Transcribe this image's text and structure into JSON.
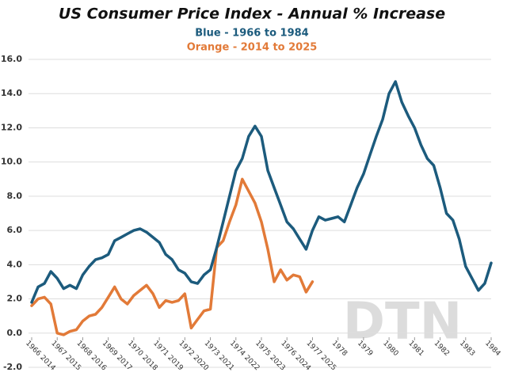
{
  "chart_data": {
    "type": "line",
    "title": "US Consumer Price Index - Annual % Increase",
    "subtitle": "Blue - 1966 to 1984",
    "subtitle2": "Orange - 2014 to 2025",
    "watermark": "DTN",
    "x": [
      1966,
      1966.25,
      1966.5,
      1966.75,
      1967,
      1967.25,
      1967.5,
      1967.75,
      1968,
      1968.25,
      1968.5,
      1968.75,
      1969,
      1969.25,
      1969.5,
      1969.75,
      1970,
      1970.25,
      1970.5,
      1970.75,
      1971,
      1971.25,
      1971.5,
      1971.75,
      1972,
      1972.25,
      1972.5,
      1972.75,
      1973,
      1973.25,
      1973.5,
      1973.75,
      1974,
      1974.25,
      1974.5,
      1974.75,
      1975,
      1975.25,
      1975.5,
      1975.75,
      1976,
      1976.25,
      1976.5,
      1976.75,
      1977,
      1977.25,
      1977.5,
      1977.75,
      1978,
      1978.25,
      1978.5,
      1978.75,
      1979,
      1979.25,
      1979.5,
      1979.75,
      1980,
      1980.25,
      1980.5,
      1980.75,
      1981,
      1981.25,
      1981.5,
      1981.75,
      1982,
      1982.25,
      1982.5,
      1982.75,
      1983,
      1983.25,
      1983.5,
      1983.75,
      1984
    ],
    "series": [
      {
        "name": "Blue - 1966 to 1984",
        "color": "#1c5b7d",
        "values": [
          1.8,
          2.7,
          2.9,
          3.6,
          3.2,
          2.6,
          2.8,
          2.6,
          3.4,
          3.9,
          4.3,
          4.4,
          4.6,
          5.4,
          5.6,
          5.8,
          6.0,
          6.1,
          5.9,
          5.6,
          5.3,
          4.6,
          4.3,
          3.7,
          3.5,
          3.0,
          2.9,
          3.4,
          3.7,
          5.0,
          6.5,
          8.0,
          9.5,
          10.2,
          11.5,
          12.1,
          11.5,
          9.5,
          8.5,
          7.5,
          6.5,
          6.1,
          5.5,
          4.9,
          6.0,
          6.8,
          6.6,
          6.7,
          6.8,
          6.5,
          7.5,
          8.5,
          9.3,
          10.4,
          11.5,
          12.5,
          14.0,
          14.7,
          13.5,
          12.7,
          12.0,
          11.0,
          10.2,
          9.8,
          8.5,
          7.0,
          6.6,
          5.5,
          3.9,
          3.2,
          2.5,
          2.9,
          4.1
        ]
      },
      {
        "name": "Orange - 2014 to 2025",
        "color": "#e27a38",
        "values": [
          1.6,
          2.0,
          2.1,
          1.7,
          0.0,
          -0.1,
          0.1,
          0.2,
          0.7,
          1.0,
          1.1,
          1.5,
          2.1,
          2.7,
          2.0,
          1.7,
          2.2,
          2.5,
          2.8,
          2.3,
          1.5,
          1.9,
          1.8,
          1.9,
          2.3,
          0.3,
          0.8,
          1.3,
          1.4,
          5.0,
          5.4,
          6.5,
          7.5,
          9.0,
          8.3,
          7.6,
          6.5,
          4.9,
          3.0,
          3.7,
          3.1,
          3.4,
          3.3,
          2.4,
          3.0,
          null,
          null,
          null,
          null,
          null,
          null,
          null,
          null,
          null,
          null,
          null,
          null,
          null,
          null,
          null,
          null,
          null,
          null,
          null,
          null,
          null,
          null,
          null,
          null,
          null,
          null,
          null,
          null
        ]
      }
    ],
    "xlim": [
      1966,
      1984
    ],
    "xticks": [
      {
        "value": 1966,
        "label": "1966 2014"
      },
      {
        "value": 1967,
        "label": "1967 2015"
      },
      {
        "value": 1968,
        "label": "1968 2016"
      },
      {
        "value": 1969,
        "label": "1969 2017"
      },
      {
        "value": 1970,
        "label": "1970 2018"
      },
      {
        "value": 1971,
        "label": "1971 2019"
      },
      {
        "value": 1972,
        "label": "1972 2020"
      },
      {
        "value": 1973,
        "label": "1973 2021"
      },
      {
        "value": 1974,
        "label": "1974 2022"
      },
      {
        "value": 1975,
        "label": "1975 2023"
      },
      {
        "value": 1976,
        "label": "1976 2024"
      },
      {
        "value": 1977,
        "label": "1977 2025"
      },
      1978,
      1979,
      1980,
      1981,
      1982,
      1983,
      1984
    ],
    "ylim": [
      -2,
      16
    ],
    "yticks": [
      {
        "value": -2,
        "label": "-2.0"
      },
      {
        "value": 0,
        "label": "0.0"
      },
      {
        "value": 2,
        "label": "2.0"
      },
      {
        "value": 4,
        "label": "4.0"
      },
      {
        "value": 6,
        "label": "6.0"
      },
      {
        "value": 8,
        "label": "8.0"
      },
      {
        "value": 10,
        "label": "10.0"
      },
      {
        "value": 12,
        "label": "12.0"
      },
      {
        "value": 14,
        "label": "14.0"
      },
      {
        "value": 16,
        "label": "16.0"
      }
    ],
    "grid": true
  }
}
